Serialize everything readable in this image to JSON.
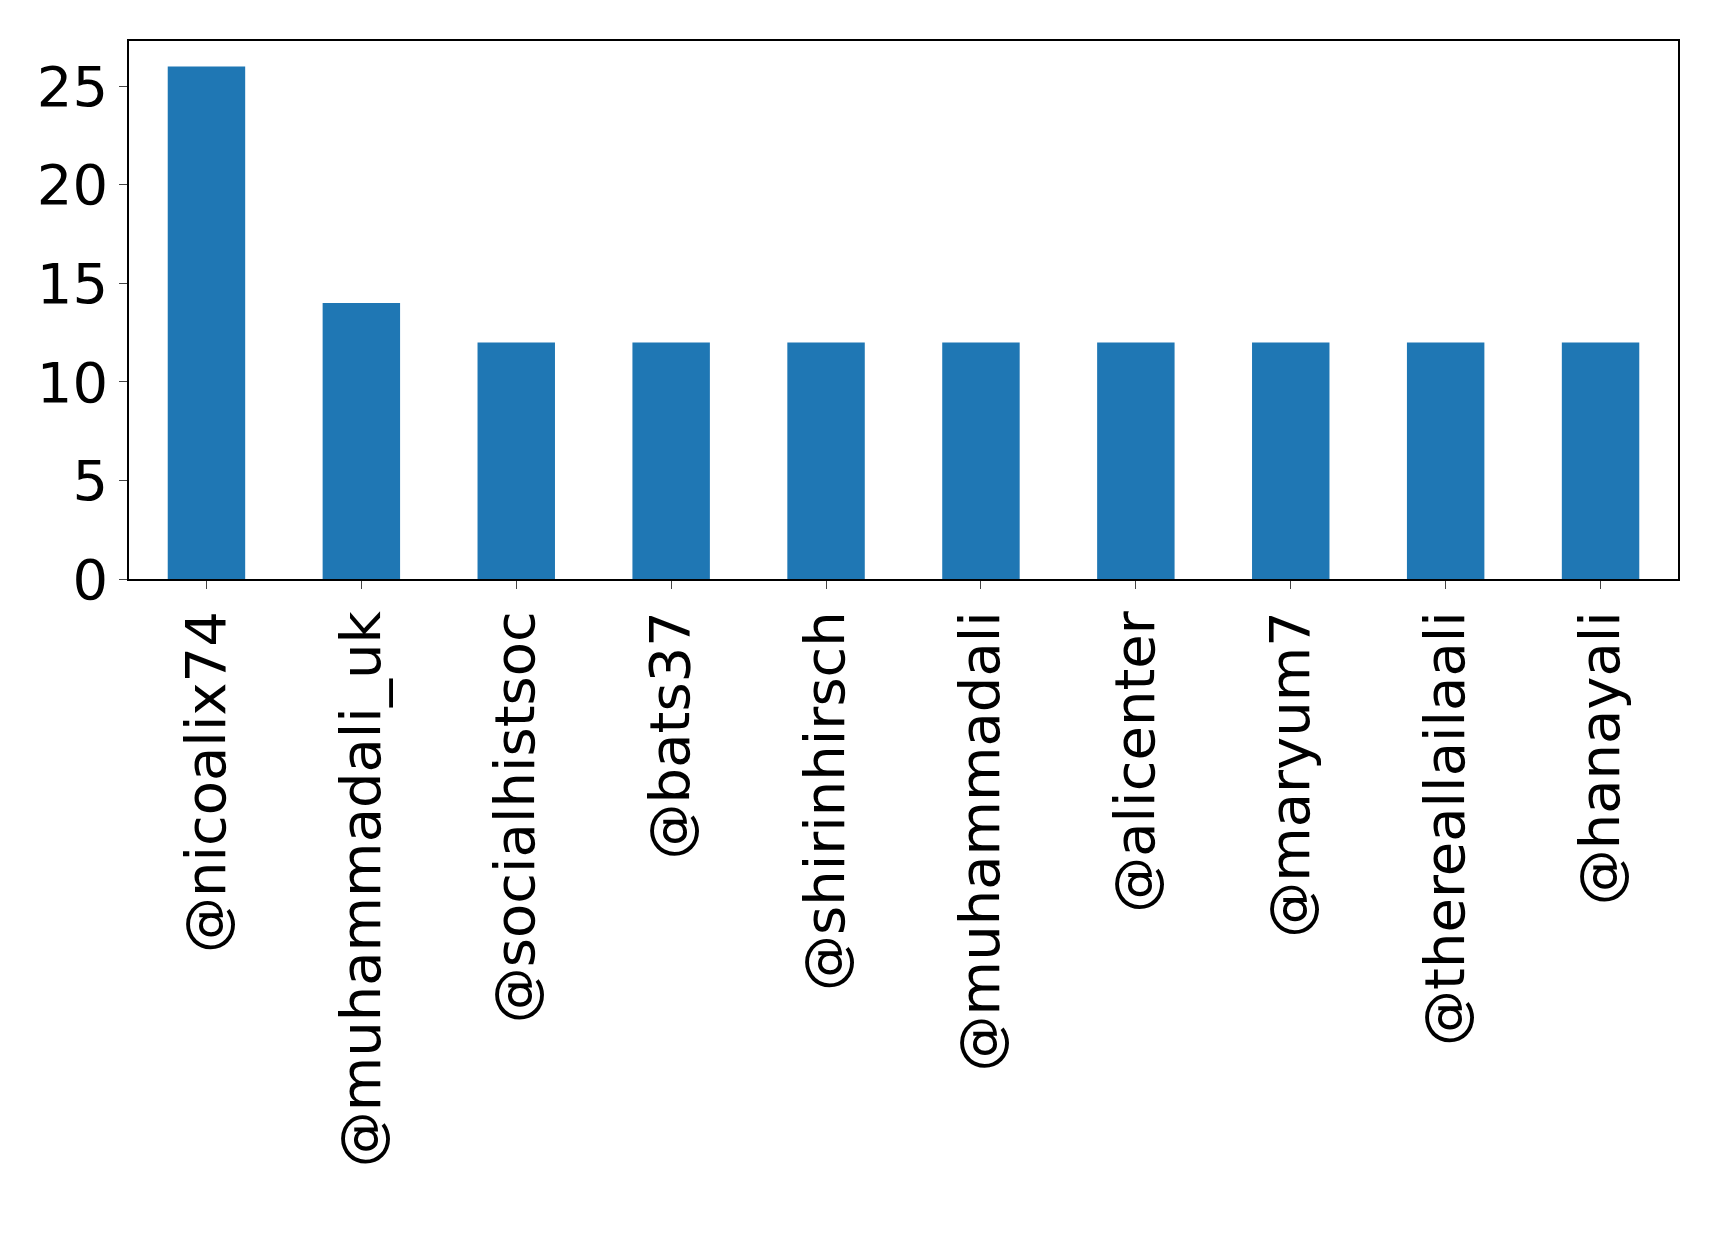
{
  "chart_data": {
    "type": "bar",
    "categories": [
      "@nicoalix74",
      "@muhammadali_uk",
      "@socialhistsoc",
      "@bats37",
      "@shirinhirsch",
      "@muhammadali",
      "@alicenter",
      "@maryum7",
      "@thereallailaali",
      "@hanayali"
    ],
    "values": [
      26,
      14,
      12,
      12,
      12,
      12,
      12,
      12,
      12,
      12
    ],
    "color": "#1f77b4",
    "ylim": [
      0,
      27.3
    ],
    "yticks": [
      0,
      5,
      10,
      15,
      20,
      25
    ]
  }
}
